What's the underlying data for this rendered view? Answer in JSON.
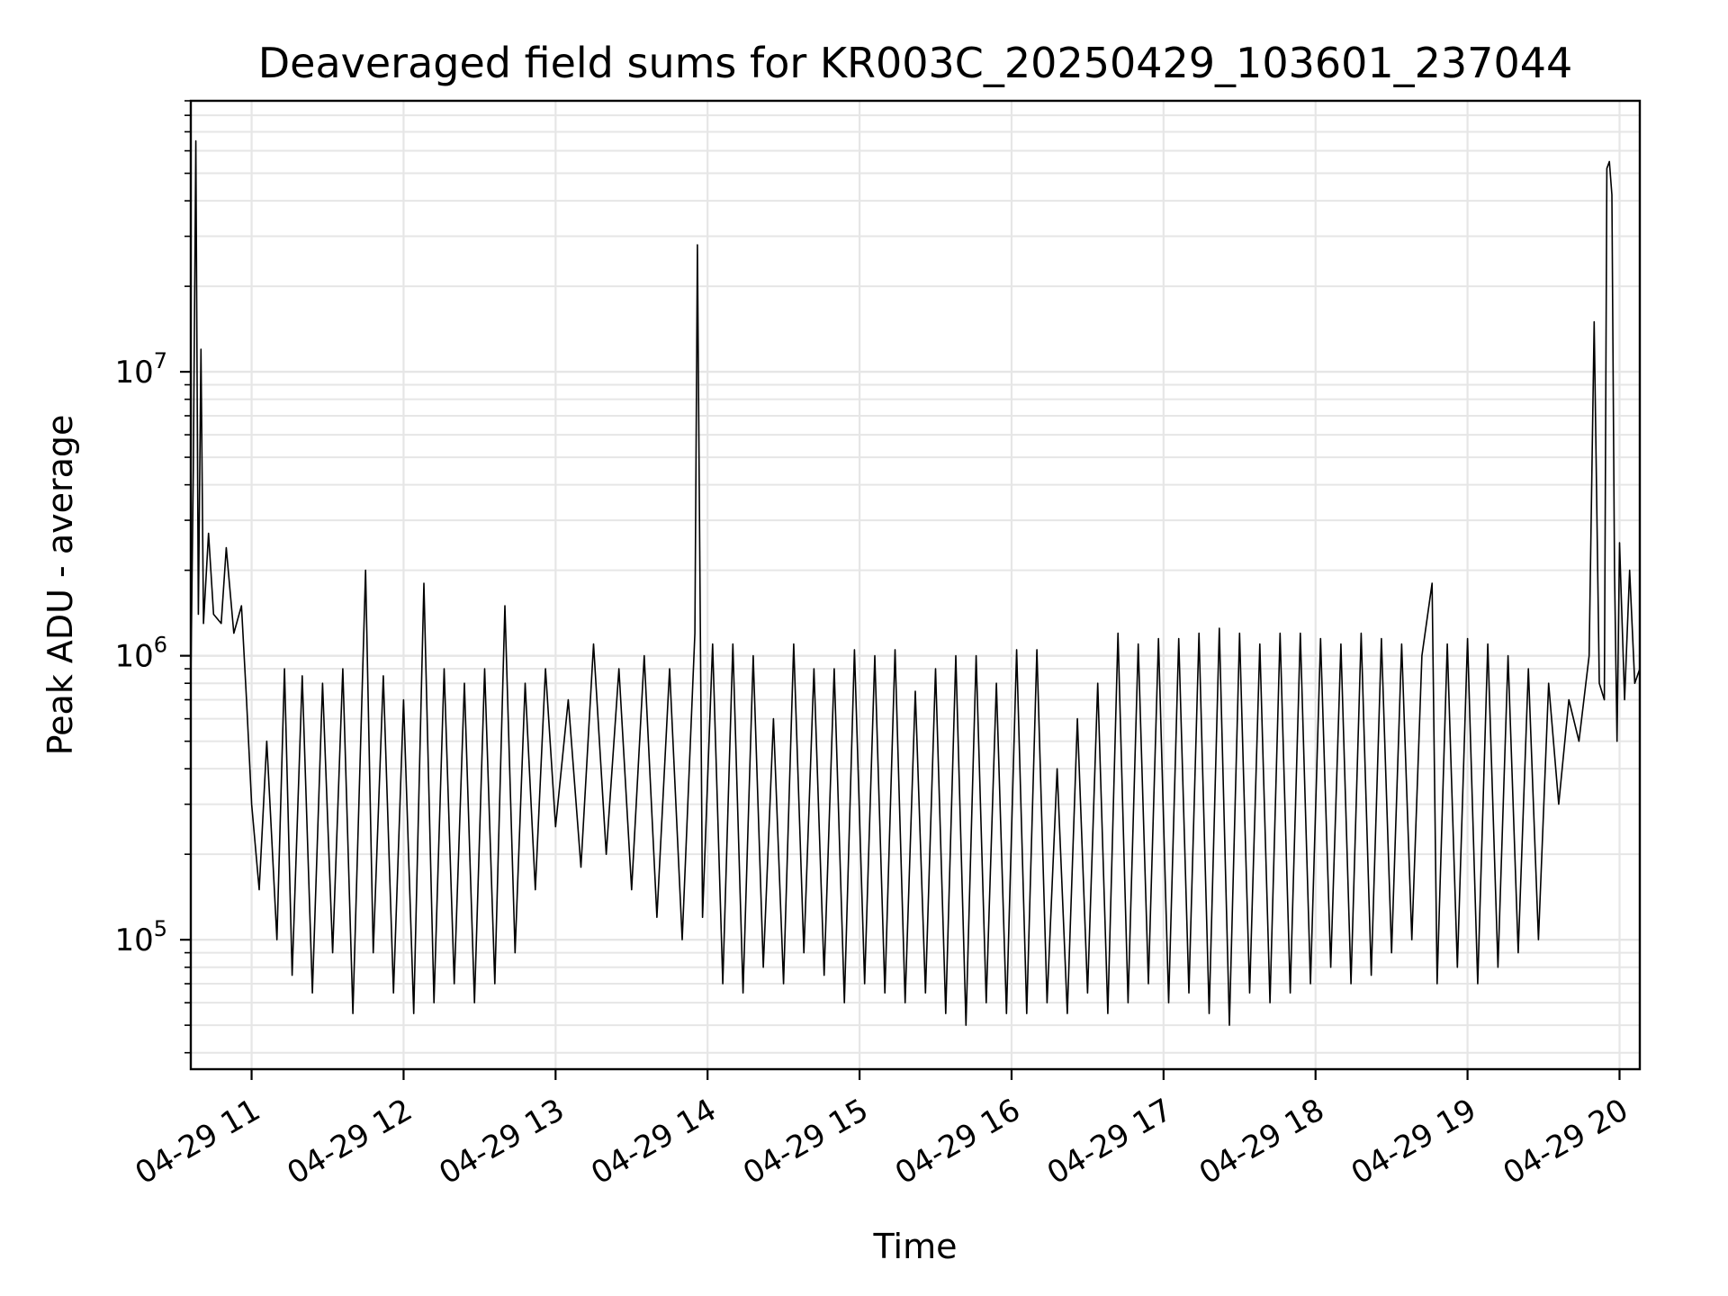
{
  "chart_data": {
    "type": "line",
    "title": "Deaveraged field sums for KR003C_20250429_103601_237044",
    "xlabel": "Time",
    "ylabel": "Peak ADU - average",
    "x_range": [
      "04-29 10:36",
      "04-29 20:08"
    ],
    "x_ticks": [
      "04-29 11",
      "04-29 12",
      "04-29 13",
      "04-29 14",
      "04-29 15",
      "04-29 16",
      "04-29 17",
      "04-29 18",
      "04-29 19",
      "04-29 20"
    ],
    "y_scale": "log",
    "ylim": [
      35000,
      90000000
    ],
    "y_ticks": [
      {
        "base": "10",
        "exp": "5",
        "value": 100000
      },
      {
        "base": "10",
        "exp": "6",
        "value": 1000000
      },
      {
        "base": "10",
        "exp": "7",
        "value": 10000000
      }
    ],
    "grid": true,
    "line_color": "#000000",
    "series": [
      {
        "points": [
          [
            "04-29 10:36",
            800000
          ],
          [
            "04-29 10:37",
            4500000
          ],
          [
            "04-29 10:38",
            65000000
          ],
          [
            "04-29 10:39",
            1400000
          ],
          [
            "04-29 10:40",
            12000000
          ],
          [
            "04-29 10:41",
            1300000
          ],
          [
            "04-29 10:43",
            2700000
          ],
          [
            "04-29 10:45",
            1400000
          ],
          [
            "04-29 10:48",
            1300000
          ],
          [
            "04-29 10:50",
            2400000
          ],
          [
            "04-29 10:53",
            1200000
          ],
          [
            "04-29 10:56",
            1500000
          ],
          [
            "04-29 10:58",
            700000
          ],
          [
            "04-29 11:00",
            300000
          ],
          [
            "04-29 11:03",
            150000
          ],
          [
            "04-29 11:06",
            500000
          ],
          [
            "04-29 11:10",
            100000
          ],
          [
            "04-29 11:13",
            900000
          ],
          [
            "04-29 11:16",
            75000
          ],
          [
            "04-29 11:20",
            850000
          ],
          [
            "04-29 11:24",
            65000
          ],
          [
            "04-29 11:28",
            800000
          ],
          [
            "04-29 11:32",
            90000
          ],
          [
            "04-29 11:36",
            900000
          ],
          [
            "04-29 11:40",
            55000
          ],
          [
            "04-29 11:45",
            2000000
          ],
          [
            "04-29 11:48",
            90000
          ],
          [
            "04-29 11:52",
            850000
          ],
          [
            "04-29 11:56",
            65000
          ],
          [
            "04-29 12:00",
            700000
          ],
          [
            "04-29 12:04",
            55000
          ],
          [
            "04-29 12:08",
            1800000
          ],
          [
            "04-29 12:12",
            60000
          ],
          [
            "04-29 12:16",
            900000
          ],
          [
            "04-29 12:20",
            70000
          ],
          [
            "04-29 12:24",
            800000
          ],
          [
            "04-29 12:28",
            60000
          ],
          [
            "04-29 12:32",
            900000
          ],
          [
            "04-29 12:36",
            70000
          ],
          [
            "04-29 12:40",
            1500000
          ],
          [
            "04-29 12:44",
            90000
          ],
          [
            "04-29 12:48",
            800000
          ],
          [
            "04-29 12:52",
            150000
          ],
          [
            "04-29 12:56",
            900000
          ],
          [
            "04-29 13:00",
            250000
          ],
          [
            "04-29 13:05",
            700000
          ],
          [
            "04-29 13:10",
            180000
          ],
          [
            "04-29 13:15",
            1100000
          ],
          [
            "04-29 13:20",
            200000
          ],
          [
            "04-29 13:25",
            900000
          ],
          [
            "04-29 13:30",
            150000
          ],
          [
            "04-29 13:35",
            1000000
          ],
          [
            "04-29 13:40",
            120000
          ],
          [
            "04-29 13:45",
            900000
          ],
          [
            "04-29 13:50",
            100000
          ],
          [
            "04-29 13:55",
            1200000
          ],
          [
            "04-29 13:56",
            28000000
          ],
          [
            "04-29 13:58",
            120000
          ],
          [
            "04-29 14:02",
            1100000
          ],
          [
            "04-29 14:06",
            70000
          ],
          [
            "04-29 14:10",
            1100000
          ],
          [
            "04-29 14:14",
            65000
          ],
          [
            "04-29 14:18",
            1000000
          ],
          [
            "04-29 14:22",
            80000
          ],
          [
            "04-29 14:26",
            600000
          ],
          [
            "04-29 14:30",
            70000
          ],
          [
            "04-29 14:34",
            1100000
          ],
          [
            "04-29 14:38",
            90000
          ],
          [
            "04-29 14:42",
            900000
          ],
          [
            "04-29 14:46",
            75000
          ],
          [
            "04-29 14:50",
            900000
          ],
          [
            "04-29 14:54",
            60000
          ],
          [
            "04-29 14:58",
            1050000
          ],
          [
            "04-29 15:02",
            70000
          ],
          [
            "04-29 15:06",
            1000000
          ],
          [
            "04-29 15:10",
            65000
          ],
          [
            "04-29 15:14",
            1050000
          ],
          [
            "04-29 15:18",
            60000
          ],
          [
            "04-29 15:22",
            750000
          ],
          [
            "04-29 15:26",
            65000
          ],
          [
            "04-29 15:30",
            900000
          ],
          [
            "04-29 15:34",
            55000
          ],
          [
            "04-29 15:38",
            1000000
          ],
          [
            "04-29 15:42",
            50000
          ],
          [
            "04-29 15:46",
            1000000
          ],
          [
            "04-29 15:50",
            60000
          ],
          [
            "04-29 15:54",
            800000
          ],
          [
            "04-29 15:58",
            55000
          ],
          [
            "04-29 16:02",
            1050000
          ],
          [
            "04-29 16:06",
            55000
          ],
          [
            "04-29 16:10",
            1050000
          ],
          [
            "04-29 16:14",
            60000
          ],
          [
            "04-29 16:18",
            400000
          ],
          [
            "04-29 16:22",
            55000
          ],
          [
            "04-29 16:26",
            600000
          ],
          [
            "04-29 16:30",
            65000
          ],
          [
            "04-29 16:34",
            800000
          ],
          [
            "04-29 16:38",
            55000
          ],
          [
            "04-29 16:42",
            1200000
          ],
          [
            "04-29 16:46",
            60000
          ],
          [
            "04-29 16:50",
            1100000
          ],
          [
            "04-29 16:54",
            70000
          ],
          [
            "04-29 16:58",
            1150000
          ],
          [
            "04-29 17:02",
            60000
          ],
          [
            "04-29 17:06",
            1150000
          ],
          [
            "04-29 17:10",
            65000
          ],
          [
            "04-29 17:14",
            1200000
          ],
          [
            "04-29 17:18",
            55000
          ],
          [
            "04-29 17:22",
            1250000
          ],
          [
            "04-29 17:26",
            50000
          ],
          [
            "04-29 17:30",
            1200000
          ],
          [
            "04-29 17:34",
            65000
          ],
          [
            "04-29 17:38",
            1100000
          ],
          [
            "04-29 17:42",
            60000
          ],
          [
            "04-29 17:46",
            1200000
          ],
          [
            "04-29 17:50",
            65000
          ],
          [
            "04-29 17:54",
            1200000
          ],
          [
            "04-29 17:58",
            70000
          ],
          [
            "04-29 18:02",
            1150000
          ],
          [
            "04-29 18:06",
            80000
          ],
          [
            "04-29 18:10",
            1100000
          ],
          [
            "04-29 18:14",
            70000
          ],
          [
            "04-29 18:18",
            1200000
          ],
          [
            "04-29 18:22",
            75000
          ],
          [
            "04-29 18:26",
            1150000
          ],
          [
            "04-29 18:30",
            90000
          ],
          [
            "04-29 18:34",
            1100000
          ],
          [
            "04-29 18:38",
            100000
          ],
          [
            "04-29 18:42",
            1000000
          ],
          [
            "04-29 18:46",
            1800000
          ],
          [
            "04-29 18:48",
            70000
          ],
          [
            "04-29 18:52",
            1100000
          ],
          [
            "04-29 18:56",
            80000
          ],
          [
            "04-29 19:00",
            1150000
          ],
          [
            "04-29 19:04",
            70000
          ],
          [
            "04-29 19:08",
            1100000
          ],
          [
            "04-29 19:12",
            80000
          ],
          [
            "04-29 19:16",
            1000000
          ],
          [
            "04-29 19:20",
            90000
          ],
          [
            "04-29 19:24",
            900000
          ],
          [
            "04-29 19:28",
            100000
          ],
          [
            "04-29 19:32",
            800000
          ],
          [
            "04-29 19:36",
            300000
          ],
          [
            "04-29 19:40",
            700000
          ],
          [
            "04-29 19:44",
            500000
          ],
          [
            "04-29 19:48",
            1000000
          ],
          [
            "04-29 19:50",
            15000000
          ],
          [
            "04-29 19:52",
            800000
          ],
          [
            "04-29 19:54",
            700000
          ],
          [
            "04-29 19:55",
            52000000
          ],
          [
            "04-29 19:56",
            55000000
          ],
          [
            "04-29 19:57",
            42000000
          ],
          [
            "04-29 19:58",
            2000000
          ],
          [
            "04-29 19:59",
            500000
          ],
          [
            "04-29 20:00",
            2500000
          ],
          [
            "04-29 20:02",
            700000
          ],
          [
            "04-29 20:04",
            2000000
          ],
          [
            "04-29 20:06",
            800000
          ],
          [
            "04-29 20:08",
            900000
          ]
        ]
      }
    ]
  }
}
